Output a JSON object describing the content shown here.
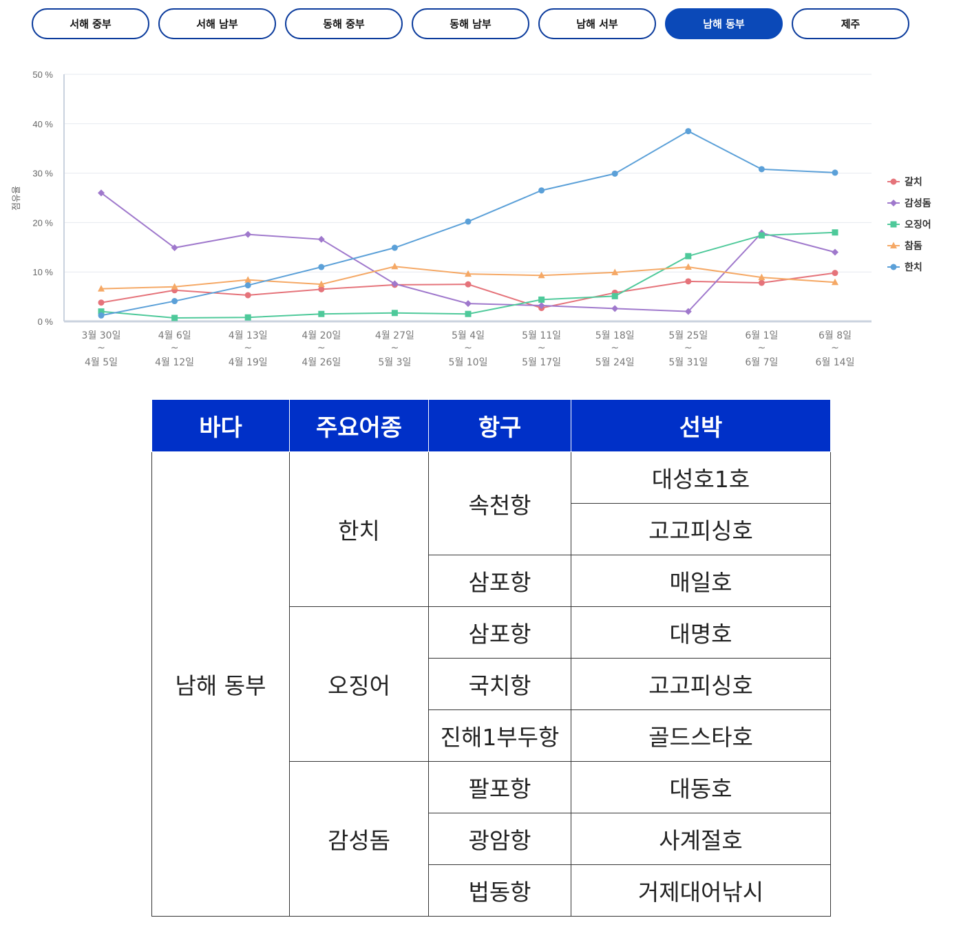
{
  "tabs": [
    {
      "label": "서해 중부"
    },
    {
      "label": "서해 남부"
    },
    {
      "label": "동해 중부"
    },
    {
      "label": "동해 남부"
    },
    {
      "label": "남해 서부"
    },
    {
      "label": "남해 동부",
      "active": true
    },
    {
      "label": "제주"
    }
  ],
  "chart_data": {
    "type": "line",
    "ylabel": "점유율",
    "ylim": [
      0,
      50
    ],
    "yticks": [
      "50 %",
      "40 %",
      "30 %",
      "20 %",
      "10 %",
      "0 %"
    ],
    "categories": [
      [
        "3월 30일",
        "~",
        "4월 5일"
      ],
      [
        "4월 6일",
        "~",
        "4월 12일"
      ],
      [
        "4월 13일",
        "~",
        "4월 19일"
      ],
      [
        "4월 20일",
        "~",
        "4월 26일"
      ],
      [
        "4월 27일",
        "~",
        "5월 3일"
      ],
      [
        "5월 4일",
        "~",
        "5월 10일"
      ],
      [
        "5월 11일",
        "~",
        "5월 17일"
      ],
      [
        "5월 18일",
        "~",
        "5월 24일"
      ],
      [
        "5월 25일",
        "~",
        "5월 31일"
      ],
      [
        "6월 1일",
        "~",
        "6월 7일"
      ],
      [
        "6월 8일",
        "~",
        "6월 14일"
      ]
    ],
    "series": [
      {
        "name": "갈치",
        "color": "#e5737a",
        "marker": "circle",
        "values": [
          3.8,
          6.3,
          5.3,
          6.5,
          7.4,
          7.5,
          2.7,
          5.8,
          8.1,
          7.8,
          9.8
        ]
      },
      {
        "name": "감성돔",
        "color": "#9f78cc",
        "marker": "diamond",
        "values": [
          26.0,
          14.9,
          17.6,
          16.6,
          7.6,
          3.6,
          3.2,
          2.6,
          2.0,
          17.9,
          14.0
        ]
      },
      {
        "name": "오징어",
        "color": "#4ec99a",
        "marker": "square",
        "values": [
          2.0,
          0.7,
          0.8,
          1.5,
          1.7,
          1.5,
          4.4,
          5.1,
          13.2,
          17.4,
          18.0
        ]
      },
      {
        "name": "참돔",
        "color": "#f5a865",
        "marker": "triangle",
        "values": [
          6.6,
          7.0,
          8.4,
          7.5,
          11.1,
          9.6,
          9.3,
          9.9,
          11.0,
          8.9,
          7.9
        ]
      },
      {
        "name": "한치",
        "color": "#5ba0d8",
        "marker": "circle",
        "values": [
          1.2,
          4.1,
          7.3,
          11.0,
          14.9,
          20.2,
          26.5,
          29.9,
          38.5,
          30.8,
          30.1
        ]
      }
    ],
    "legend": "right",
    "grid": true
  },
  "table": {
    "headers": [
      "바다",
      "주요어종",
      "항구",
      "선박"
    ],
    "sea": "남해 동부",
    "groups": [
      {
        "species": "한치",
        "ports": [
          {
            "port": "속천항",
            "ships": [
              "대성호1호",
              "고고피싱호"
            ]
          },
          {
            "port": "삼포항",
            "ships": [
              "매일호"
            ]
          }
        ]
      },
      {
        "species": "오징어",
        "ports": [
          {
            "port": "삼포항",
            "ships": [
              "대명호"
            ]
          },
          {
            "port": "국치항",
            "ships": [
              "고고피싱호"
            ]
          },
          {
            "port": "진해1부두항",
            "ships": [
              "골드스타호"
            ]
          }
        ]
      },
      {
        "species": "감성돔",
        "ports": [
          {
            "port": "팔포항",
            "ships": [
              "대동호"
            ]
          },
          {
            "port": "광암항",
            "ships": [
              "사계절호"
            ]
          },
          {
            "port": "법동항",
            "ships": [
              "거제대어낚시"
            ]
          }
        ]
      }
    ]
  }
}
